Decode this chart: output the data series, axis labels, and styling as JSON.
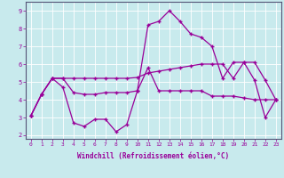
{
  "xlabel": "Windchill (Refroidissement éolien,°C)",
  "x": [
    0,
    1,
    2,
    3,
    4,
    5,
    6,
    7,
    8,
    9,
    10,
    11,
    12,
    13,
    14,
    15,
    16,
    17,
    18,
    19,
    20,
    21,
    22,
    23
  ],
  "line1": [
    3.1,
    4.3,
    5.2,
    4.7,
    2.7,
    2.5,
    2.9,
    2.9,
    2.2,
    2.6,
    4.5,
    8.2,
    8.4,
    9.0,
    8.4,
    7.7,
    7.5,
    7.0,
    5.2,
    6.1,
    6.1,
    5.1,
    3.0,
    4.0
  ],
  "line2": [
    3.1,
    4.3,
    5.2,
    5.2,
    4.4,
    4.3,
    4.3,
    4.4,
    4.4,
    4.4,
    4.5,
    5.8,
    4.5,
    4.5,
    4.5,
    4.5,
    4.5,
    4.2,
    4.2,
    4.2,
    4.1,
    4.0,
    4.0,
    4.0
  ],
  "line3": [
    3.1,
    4.3,
    5.2,
    5.2,
    5.2,
    5.2,
    5.2,
    5.2,
    5.2,
    5.2,
    5.25,
    5.5,
    5.6,
    5.7,
    5.8,
    5.9,
    6.0,
    6.0,
    6.0,
    5.2,
    6.1,
    6.1,
    5.1,
    4.0
  ],
  "line_color": "#990099",
  "bg_color": "#c8eaed",
  "grid_color": "#b0d0d8",
  "ylim": [
    1.8,
    9.5
  ],
  "xlim": [
    -0.5,
    23.5
  ]
}
